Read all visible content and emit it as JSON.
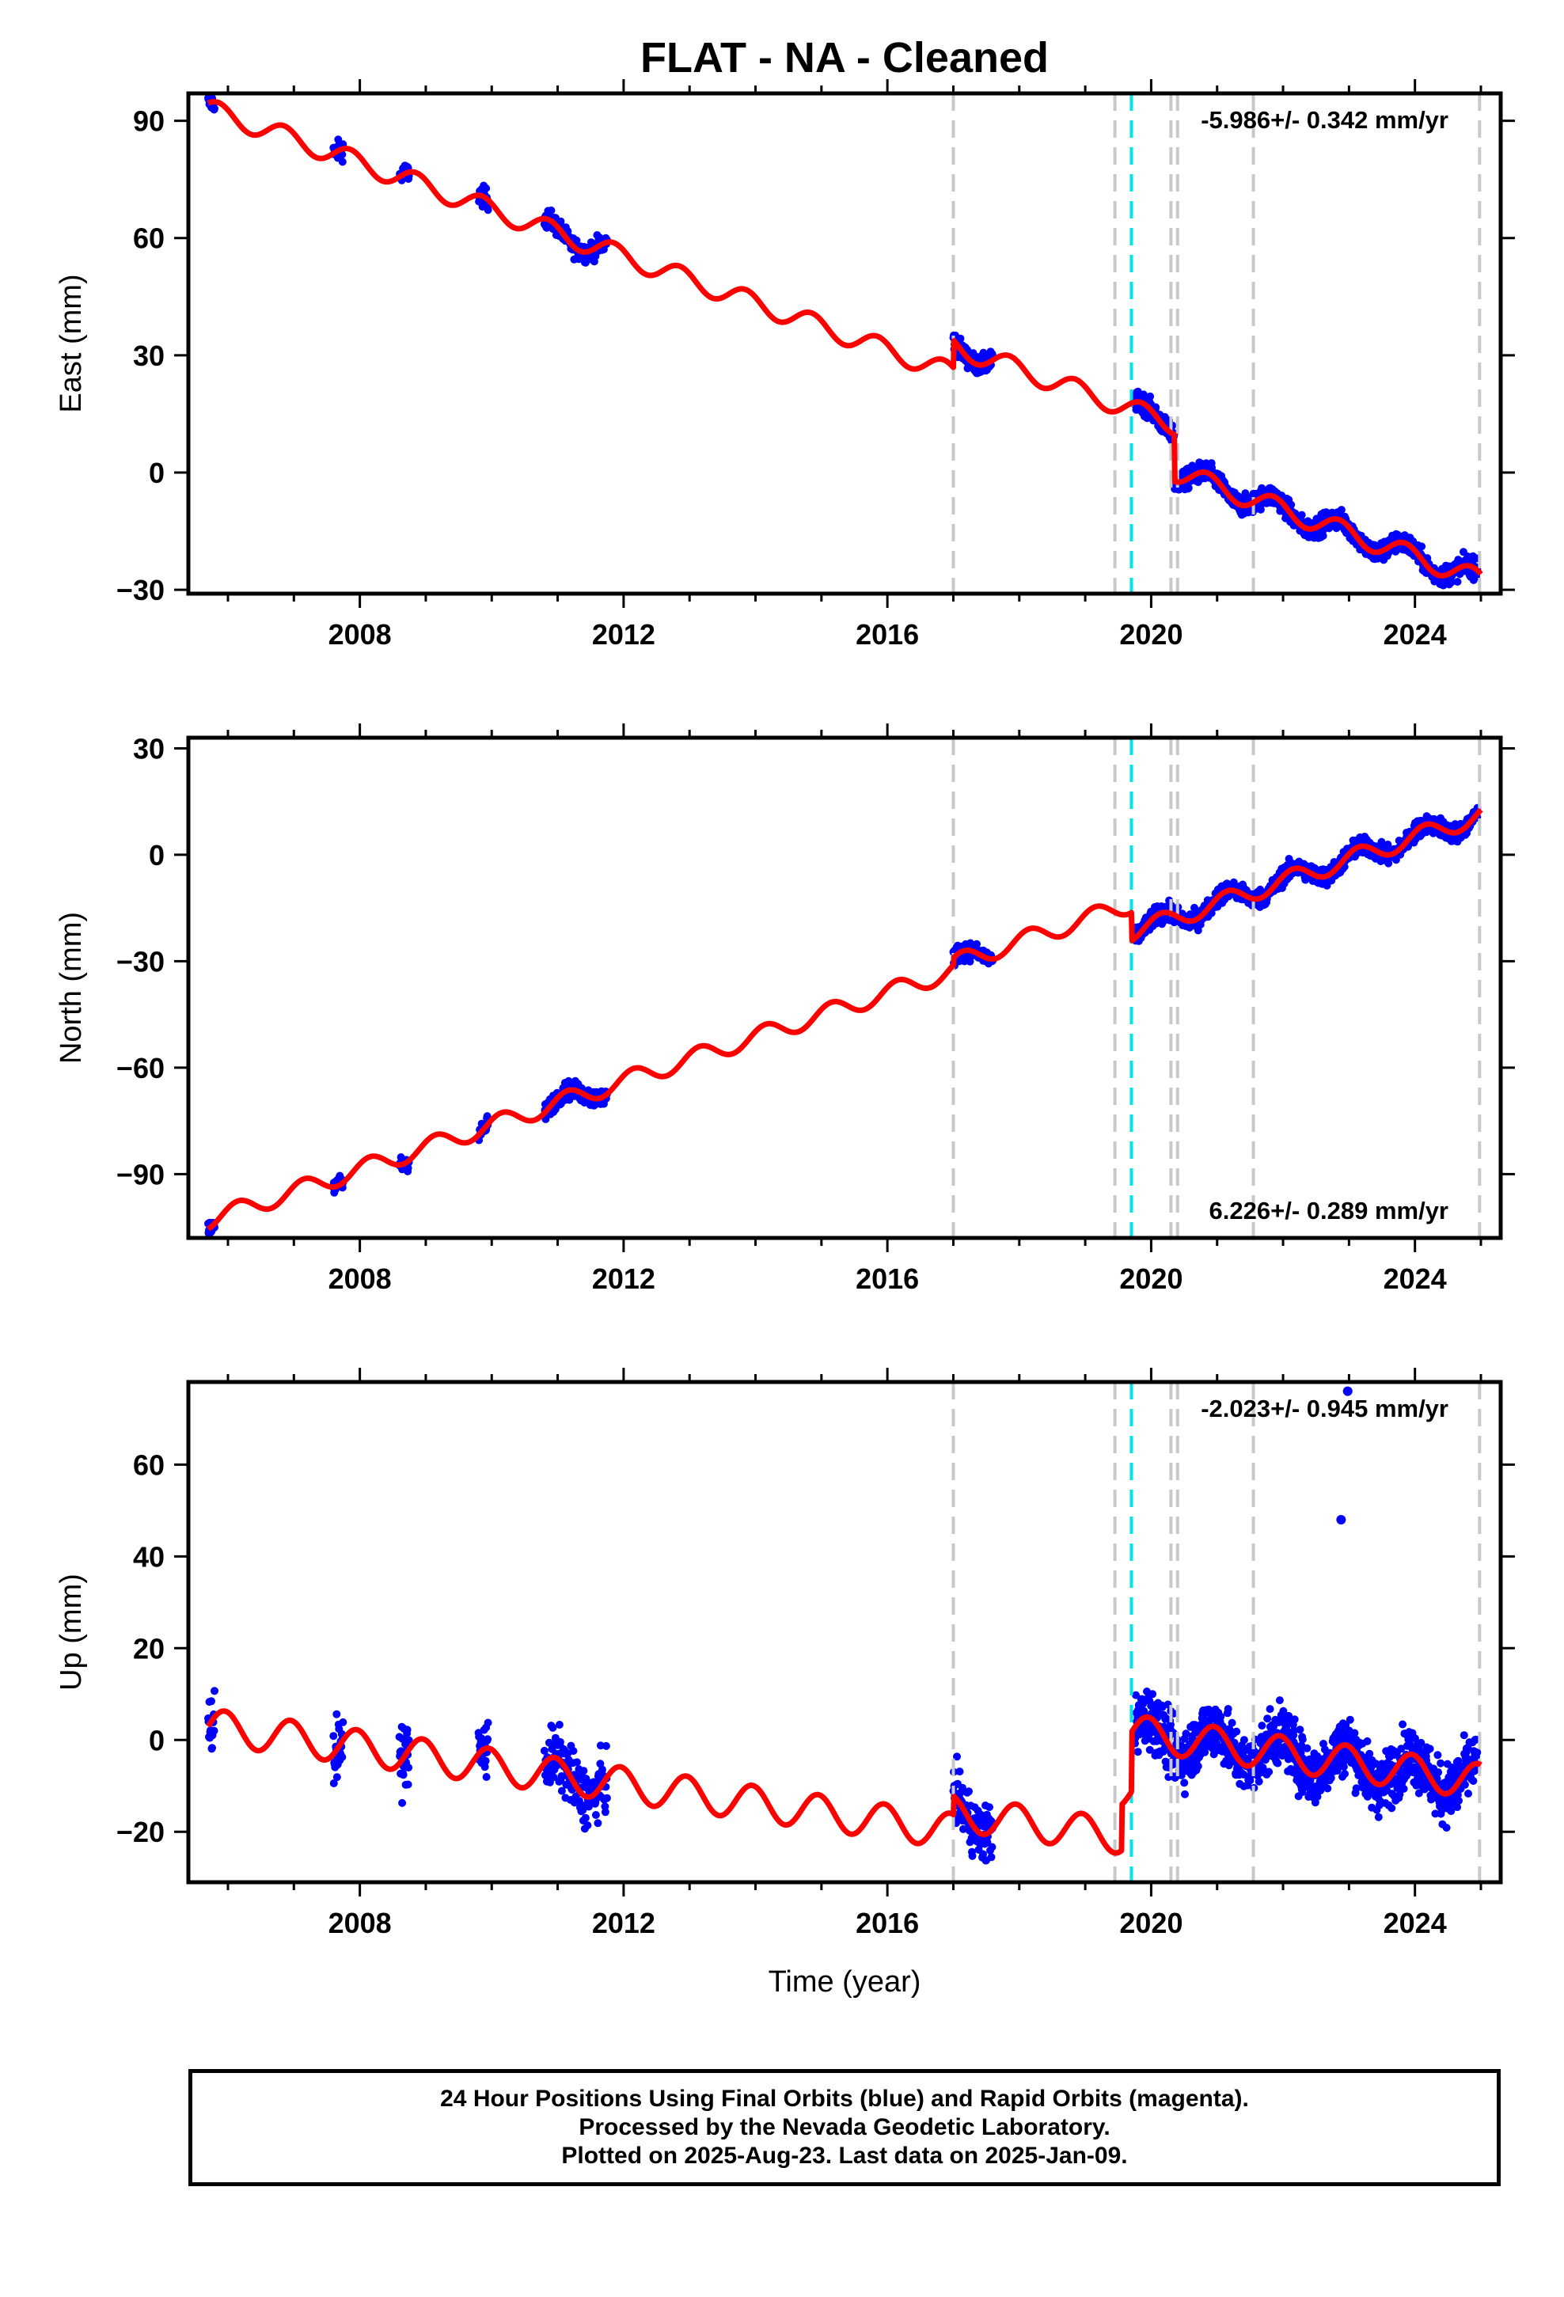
{
  "title": "FLAT  - NA - Cleaned",
  "footer": {
    "line1": "24 Hour Positions Using Final Orbits (blue) and Rapid Orbits (magenta).",
    "line2": "Processed by the Nevada Geodetic Laboratory.",
    "line3": "Plotted on 2025-Aug-23. Last data on 2025-Jan-09."
  },
  "colors": {
    "data": "#0000ff",
    "model": "#ff0000",
    "event": "#c8c8c8",
    "equipment": "#00e5e5"
  },
  "chart_data": [
    {
      "type": "scatter",
      "xlabel": "",
      "ylabel": "East (mm)",
      "rate_text": "-5.986+/- 0.342 mm/yr",
      "rate_position": "top-right",
      "xlim": [
        2005.4,
        2025.3
      ],
      "ylim": [
        -31,
        97
      ],
      "yticks": [
        -30,
        0,
        30,
        60,
        90
      ],
      "ytick_labels": [
        "−30",
        "0",
        "30",
        "60",
        "90"
      ],
      "xticks": [
        2008,
        2012,
        2016,
        2020,
        2024
      ],
      "xtick_labels": [
        "2008",
        "2012",
        "2016",
        "2020",
        "2024"
      ],
      "model": {
        "velocity": -5.986,
        "ref_year": 2005.7,
        "ref_value": 93,
        "annual_amplitude": 2.6,
        "annual_phase": 0.4,
        "offsets": [
          [
            2017.0,
            7
          ],
          [
            2020.35,
            -12
          ]
        ]
      },
      "data_segments": [
        [
          2005.7,
          2005.8
        ],
        [
          2007.6,
          2007.75
        ],
        [
          2008.6,
          2008.75
        ],
        [
          2009.8,
          2009.95
        ],
        [
          2010.8,
          2011.75
        ],
        [
          2017.0,
          2017.6
        ],
        [
          2019.75,
          2024.95
        ]
      ],
      "noise": 1.8
    },
    {
      "type": "scatter",
      "xlabel": "",
      "ylabel": "North (mm)",
      "rate_text": "6.226+/- 0.289 mm/yr",
      "rate_position": "bottom-right",
      "xlim": [
        2005.4,
        2025.3
      ],
      "ylim": [
        -108,
        33
      ],
      "yticks": [
        -90,
        -60,
        -30,
        0,
        30
      ],
      "ytick_labels": [
        "−90",
        "−60",
        "−30",
        "0",
        "30"
      ],
      "xticks": [
        2008,
        2012,
        2016,
        2020,
        2024
      ],
      "xtick_labels": [
        "2008",
        "2012",
        "2016",
        "2020",
        "2024"
      ],
      "model": {
        "velocity": 6.226,
        "ref_year": 2005.7,
        "ref_value": -103,
        "annual_amplitude": 2.6,
        "annual_phase": 0.1,
        "offsets": [
          [
            2017.0,
            2
          ],
          [
            2019.7,
            -8
          ]
        ]
      },
      "data_segments": [
        [
          2005.7,
          2005.8
        ],
        [
          2007.6,
          2007.75
        ],
        [
          2008.6,
          2008.75
        ],
        [
          2009.8,
          2009.95
        ],
        [
          2010.8,
          2011.75
        ],
        [
          2017.0,
          2017.6
        ],
        [
          2019.75,
          2024.95
        ]
      ],
      "noise": 1.8
    },
    {
      "type": "scatter",
      "xlabel": "Time (year)",
      "ylabel": "Up (mm)",
      "rate_text": "-2.023+/- 0.945 mm/yr",
      "rate_position": "top-right",
      "xlim": [
        2005.4,
        2025.3
      ],
      "ylim": [
        -31,
        78
      ],
      "yticks": [
        -20,
        0,
        20,
        40,
        60
      ],
      "ytick_labels": [
        "−20",
        "0",
        "20",
        "40",
        "60"
      ],
      "xticks": [
        2008,
        2012,
        2016,
        2020,
        2024
      ],
      "xtick_labels": [
        "2008",
        "2012",
        "2016",
        "2020",
        "2024"
      ],
      "model": {
        "velocity": -2.023,
        "ref_year": 2005.7,
        "ref_value": 3,
        "annual_amplitude": 3.8,
        "annual_phase": 0.3,
        "offsets": [
          [
            2017.0,
            4
          ],
          [
            2019.55,
            10
          ],
          [
            2019.7,
            13
          ]
        ]
      },
      "data_segments": [
        [
          2005.7,
          2005.8
        ],
        [
          2007.6,
          2007.75
        ],
        [
          2008.6,
          2008.75
        ],
        [
          2009.8,
          2009.95
        ],
        [
          2010.8,
          2011.75
        ],
        [
          2017.0,
          2017.6
        ],
        [
          2019.75,
          2024.95
        ]
      ],
      "noise": 4.5,
      "outliers": [
        [
          2022.88,
          48
        ],
        [
          2022.98,
          76
        ]
      ]
    }
  ],
  "event_lines": [
    2017.0,
    2019.45,
    2020.3,
    2020.4,
    2021.55,
    2024.98
  ],
  "equipment_lines": [
    2019.7
  ]
}
